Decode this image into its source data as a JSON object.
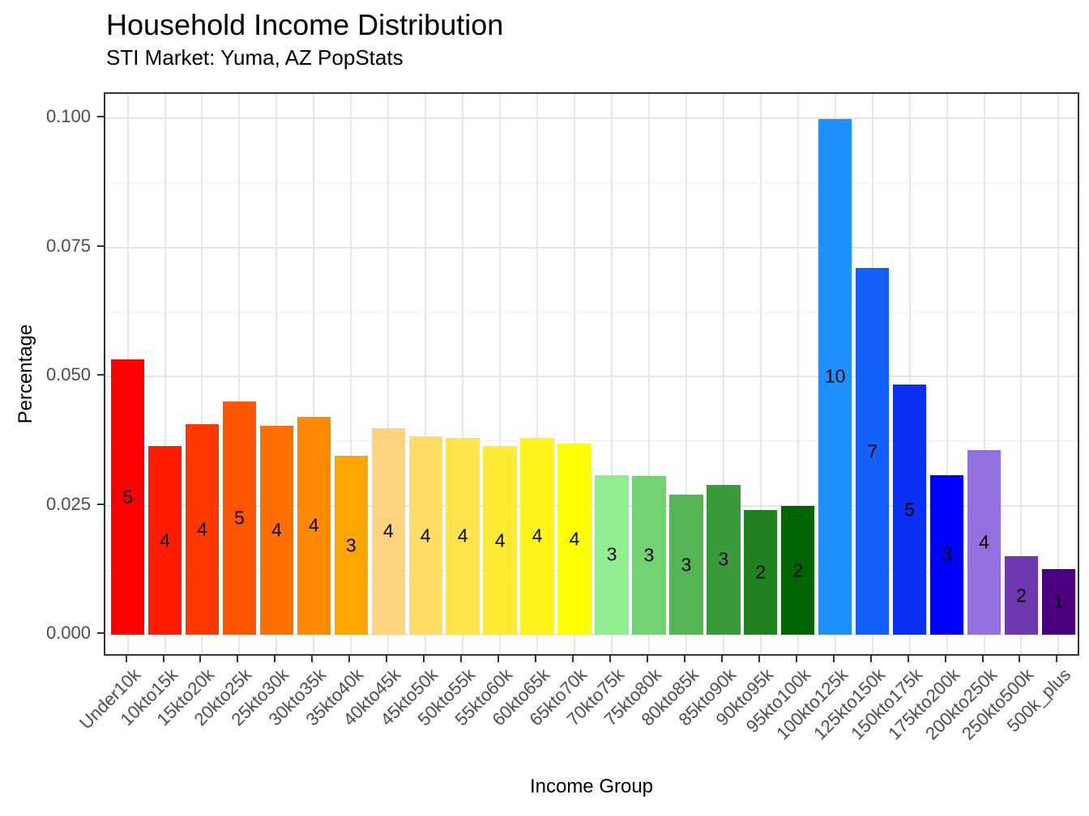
{
  "title": "Household Income Distribution",
  "subtitle": "STI Market: Yuma, AZ PopStats",
  "chart_data": {
    "type": "bar",
    "title": "Household Income Distribution",
    "subtitle": "STI Market: Yuma, AZ PopStats",
    "xlabel": "Income Group",
    "ylabel": "Percentage",
    "ylim": [
      0,
      0.1
    ],
    "yticks": [
      0,
      0.025,
      0.05,
      0.075,
      0.1
    ],
    "ytick_labels": [
      "0.000",
      "0.025",
      "0.050",
      "0.075",
      "0.100"
    ],
    "yticks_minor": [
      0.0125,
      0.0375,
      0.0625,
      0.0875
    ],
    "grid": "horizontal major+minor and vertical major, light gray on white panel",
    "legend": "none",
    "categories": [
      "Under10k",
      "10kto15k",
      "15kto20k",
      "20kto25k",
      "25kto30k",
      "30kto35k",
      "35kto40k",
      "40kto45k",
      "45kto50k",
      "50kto55k",
      "55kto60k",
      "60kto65k",
      "65kto70k",
      "70kto75k",
      "75kto80k",
      "80kto85k",
      "85kto90k",
      "90kto95k",
      "95kto100k",
      "100kto125k",
      "125kto150k",
      "150kto175k",
      "175kto200k",
      "200kto250k",
      "250kto500k",
      "500k_plus"
    ],
    "values": [
      0.0533,
      0.0365,
      0.0408,
      0.0451,
      0.0405,
      0.0422,
      0.0346,
      0.04,
      0.0384,
      0.0381,
      0.0365,
      0.0381,
      0.037,
      0.0309,
      0.0307,
      0.0271,
      0.029,
      0.0241,
      0.0249,
      0.0999,
      0.071,
      0.0484,
      0.0309,
      0.0357,
      0.0152,
      0.0127
    ],
    "bar_labels": [
      "5",
      "4",
      "4",
      "5",
      "4",
      "4",
      "3",
      "4",
      "4",
      "4",
      "4",
      "4",
      "4",
      "3",
      "3",
      "3",
      "3",
      "2",
      "2",
      "10",
      "7",
      "5",
      "3",
      "4",
      "2",
      "1"
    ],
    "bar_colors": [
      "#FF0000",
      "#FF1C00",
      "#FF3800",
      "#FF5400",
      "#FF6E00",
      "#FF8900",
      "#FFA500",
      "#FFD480",
      "#FFDD66",
      "#FFE44D",
      "#FFEB33",
      "#FFF31A",
      "#FFFF00",
      "#90EE90",
      "#73D273",
      "#55B555",
      "#3A9B3A",
      "#1F811F",
      "#006400",
      "#1E90FF",
      "#1460FA",
      "#0A30F5",
      "#0000FF",
      "#9370DB",
      "#6F38AF",
      "#4B0082"
    ]
  },
  "style": {
    "background": "#FFFFFF",
    "panel_border": "#333333",
    "grid_major": "#E5E5E5",
    "grid_minor": "#EFEFEF",
    "tick_color": "#333333",
    "axis_text_color": "#4D4D4D",
    "text_color": "#000000",
    "bar_label_color": "#000000"
  }
}
